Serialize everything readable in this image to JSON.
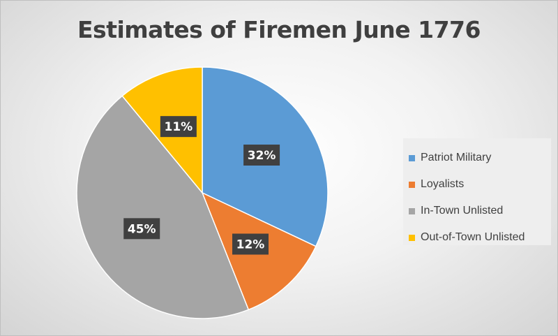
{
  "chart_data": {
    "type": "pie",
    "title": "Estimates of Firemen June 1776",
    "categories": [
      "Patriot Military",
      "Loyalists",
      "In-Town Unlisted",
      "Out-of-Town Unlisted"
    ],
    "values": [
      32,
      12,
      45,
      11
    ],
    "data_labels": [
      "32%",
      "12%",
      "45%",
      "11%"
    ],
    "colors": [
      "#5b9bd5",
      "#ed7d31",
      "#a5a5a5",
      "#ffc000"
    ],
    "start_angle_deg": 0,
    "direction": "clockwise",
    "legend_position": "right"
  }
}
